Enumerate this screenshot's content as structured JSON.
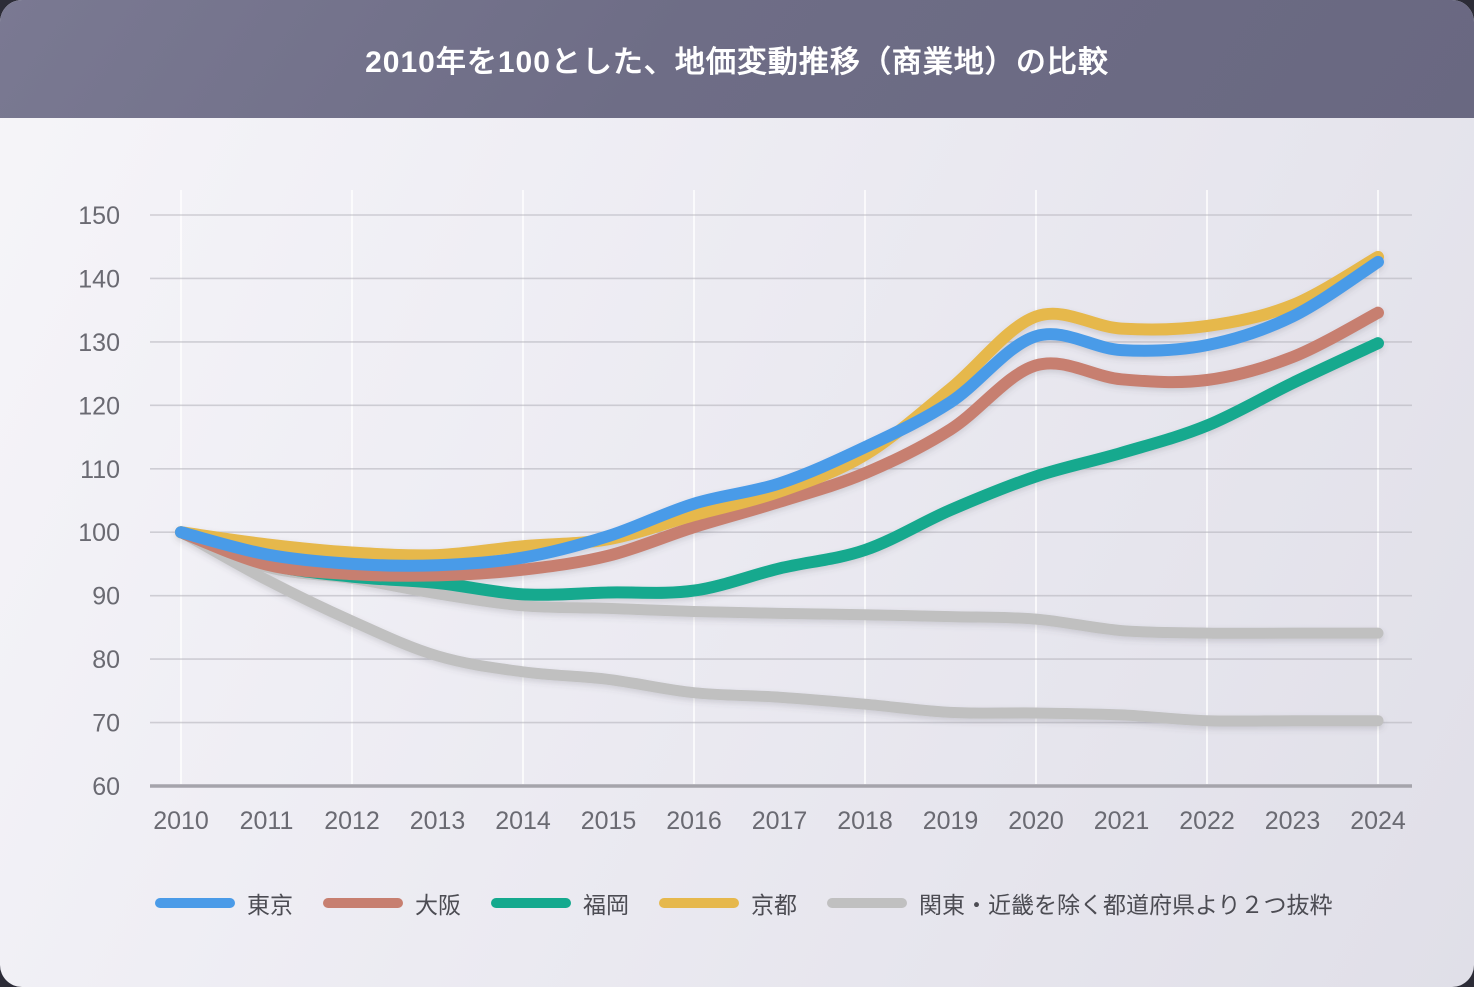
{
  "header": {
    "title": "2010年を100とした、地価変動推移（商業地）の比較"
  },
  "chart_data": {
    "type": "line",
    "title": "2010年を100とした、地価変動推移（商業地）の比較",
    "x": [
      2010,
      2011,
      2012,
      2013,
      2014,
      2015,
      2016,
      2017,
      2018,
      2019,
      2020,
      2021,
      2022,
      2023,
      2024
    ],
    "ylim": [
      60,
      150
    ],
    "ytick_step": 10,
    "grid": {
      "horizontal": true,
      "vertical": "even-years"
    },
    "legend_position": "bottom",
    "series": [
      {
        "id": "regional-b",
        "name": "関東・近畿を除く都道府県より２つ抜粋（下）",
        "color": "#c0c0c0",
        "width": 11,
        "values": [
          100,
          92.5,
          86.0,
          80.5,
          78.0,
          76.8,
          74.7,
          74.0,
          72.9,
          71.6,
          71.5,
          71.2,
          70.3,
          70.3,
          70.3
        ]
      },
      {
        "id": "regional-a",
        "name": "関東・近畿を除く都道府県より２つ抜粋（上）",
        "color": "#c0c0c0",
        "width": 11,
        "values": [
          100,
          94.5,
          92.7,
          90.3,
          88.4,
          88.0,
          87.5,
          87.2,
          87.0,
          86.7,
          86.3,
          84.5,
          84.1,
          84.1,
          84.1
        ]
      },
      {
        "id": "fukuoka",
        "name": "福岡",
        "color": "#14a98e",
        "width": 12,
        "values": [
          100,
          95.0,
          93.0,
          92.0,
          90.2,
          90.5,
          90.8,
          94.3,
          97.2,
          103.5,
          108.8,
          112.5,
          116.8,
          123.5,
          129.8
        ]
      },
      {
        "id": "osaka",
        "name": "大阪",
        "color": "#c77f70",
        "width": 12,
        "values": [
          100,
          94.9,
          93.4,
          93.2,
          94.1,
          96.3,
          100.8,
          104.8,
          109.3,
          116.2,
          126.3,
          124.1,
          124.0,
          127.6,
          134.6
        ]
      },
      {
        "id": "kyoto",
        "name": "京都",
        "color": "#e6b84c",
        "width": 12,
        "values": [
          100,
          98.1,
          96.8,
          96.4,
          97.8,
          98.9,
          102.7,
          106.4,
          112.2,
          122.6,
          134.0,
          132.1,
          132.5,
          135.8,
          143.4
        ]
      },
      {
        "id": "tokyo",
        "name": "東京",
        "color": "#4a9be8",
        "width": 12,
        "values": [
          100,
          96.5,
          95.0,
          94.8,
          96.0,
          99.4,
          104.5,
          107.7,
          113.4,
          120.5,
          130.9,
          128.7,
          129.5,
          134.0,
          142.6
        ]
      }
    ],
    "legend": [
      {
        "id": "tokyo",
        "label": "東京",
        "color": "#4a9be8"
      },
      {
        "id": "osaka",
        "label": "大阪",
        "color": "#c77f70"
      },
      {
        "id": "fukuoka",
        "label": "福岡",
        "color": "#14a98e"
      },
      {
        "id": "kyoto",
        "label": "京都",
        "color": "#e6b84c"
      },
      {
        "id": "regional",
        "label": "関東・近畿を除く都道府県より２つ抜粋",
        "color": "#c0c0c0"
      }
    ]
  }
}
